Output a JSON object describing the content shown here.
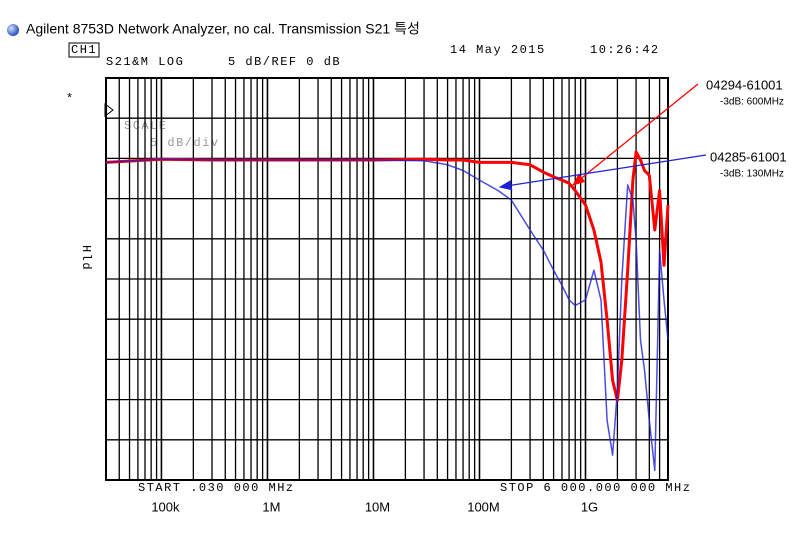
{
  "chart_data": {
    "type": "line",
    "title": "Agilent 8753D Network Analyzer, no cal. Transmission S21 특성",
    "x_scale": "log",
    "xlim": [
      30000,
      6000000000
    ],
    "xticks": [
      {
        "value": 100000,
        "label": "100k"
      },
      {
        "value": 1000000,
        "label": "1M"
      },
      {
        "value": 10000000,
        "label": "10M"
      },
      {
        "value": 100000000,
        "label": "100M"
      },
      {
        "value": 1000000000,
        "label": "1G"
      }
    ],
    "ylim": [
      -45,
      5
    ],
    "yticks": [
      -45,
      -40,
      -35,
      -30,
      -25,
      -20,
      -15,
      -10,
      -5,
      0,
      5
    ],
    "grid": true,
    "x": [
      30000,
      100000,
      300000,
      1000000,
      3000000,
      10000000,
      30000000,
      50000000,
      70000000,
      100000000,
      150000000,
      200000000,
      300000000,
      400000000,
      500000000,
      600000000,
      700000000,
      800000000,
      1000000000,
      1200000000,
      1400000000,
      1600000000,
      1800000000,
      2000000000,
      2200000000,
      2500000000,
      2800000000,
      3000000000,
      3300000000,
      3600000000,
      4000000000,
      4500000000,
      5000000000,
      5500000000,
      6000000000
    ],
    "series": [
      {
        "name": "04294-61001",
        "color": "#ff0000",
        "values": [
          -5.5,
          -5.1,
          -5.2,
          -5.2,
          -5.2,
          -5.2,
          -5.1,
          -5.2,
          -5.2,
          -5.5,
          -5.5,
          -5.5,
          -5.8,
          -6.7,
          -7.3,
          -7.7,
          -8.1,
          -9.0,
          -10.8,
          -13.9,
          -17.9,
          -25.1,
          -32.6,
          -35.1,
          -30.1,
          -18.9,
          -7.7,
          -4.2,
          -5.2,
          -6.5,
          -7.1,
          -13.9,
          -9.0,
          -18.3,
          -10.8
        ]
      },
      {
        "name": "04285-61001",
        "color": "#1f1fd6",
        "values": [
          -5.5,
          -5.1,
          -5.2,
          -5.2,
          -5.2,
          -5.2,
          -5.3,
          -5.8,
          -6.5,
          -7.7,
          -9.0,
          -10.2,
          -13.9,
          -16.4,
          -18.9,
          -20.8,
          -22.6,
          -23.3,
          -22.6,
          -18.9,
          -22.6,
          -37.6,
          -41.9,
          -33.8,
          -20.1,
          -8.3,
          -10.2,
          -15.2,
          -27.6,
          -31.3,
          -37.6,
          -43.8,
          -16.4,
          -22.6,
          -27.6
        ]
      }
    ],
    "annotations": [
      "-3dB: 600MHz",
      "-3dB: 130MHz"
    ],
    "instrument": {
      "channel": "CH1",
      "measurement": "S21&M LOG",
      "scale": "5 dB/REF 0 dB",
      "date": "14 May 2015",
      "time": "10:26:42",
      "marker": "*",
      "overlay_1": "SCALE",
      "overlay_2": "5 dB/div",
      "hold": "Hld",
      "start": "START  .030 000 MHz",
      "stop": "STOP 6 000.000 000 MHz"
    }
  }
}
